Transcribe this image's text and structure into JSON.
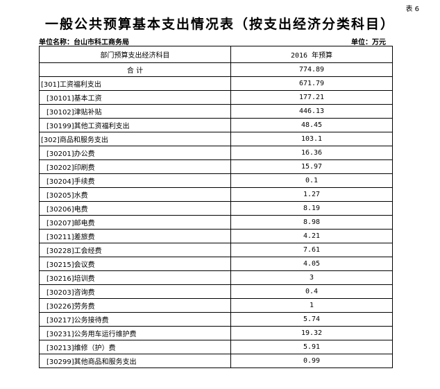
{
  "table_tag": "表 6",
  "title": "一般公共预算基本支出情况表（按支出经济分类科目）",
  "unit_name": "单位名称：台山市科工商务局",
  "unit": "单位：万元",
  "headers": [
    "部门预算支出经济科目",
    "2016 年预算"
  ],
  "total": {
    "label": "合 计",
    "value": "774.89"
  },
  "rows": [
    {
      "label": "[301]工资福利支出",
      "value": "671.79",
      "level": 1
    },
    {
      "label": "[30101]基本工资",
      "value": "177.21",
      "level": 2
    },
    {
      "label": "[30102]津贴补贴",
      "value": "446.13",
      "level": 2
    },
    {
      "label": "[30199]其他工资福利支出",
      "value": "48.45",
      "level": 2
    },
    {
      "label": "[302]商品和服务支出",
      "value": "103.1",
      "level": 1
    },
    {
      "label": "[30201]办公费",
      "value": "16.36",
      "level": 2
    },
    {
      "label": "[30202]印刷费",
      "value": "15.97",
      "level": 2
    },
    {
      "label": "[30204]手续费",
      "value": "0.1",
      "level": 2
    },
    {
      "label": "[30205]水费",
      "value": "1.27",
      "level": 2
    },
    {
      "label": "[30206]电费",
      "value": "8.19",
      "level": 2
    },
    {
      "label": "[30207]邮电费",
      "value": "8.98",
      "level": 2
    },
    {
      "label": "[30211]差旅费",
      "value": "4.21",
      "level": 2
    },
    {
      "label": "[30228]工会经费",
      "value": "7.61",
      "level": 2
    },
    {
      "label": "[30215]会议费",
      "value": "4.05",
      "level": 2
    },
    {
      "label": "[30216]培训费",
      "value": "3",
      "level": 2
    },
    {
      "label": "[30203]咨询费",
      "value": "0.4",
      "level": 2
    },
    {
      "label": "[30226]劳务费",
      "value": "1",
      "level": 2
    },
    {
      "label": "[30217]公务接待费",
      "value": "5.74",
      "level": 2
    },
    {
      "label": "[30231]公务用车运行维护费",
      "value": "19.32",
      "level": 2
    },
    {
      "label": "[30213]维修（护）费",
      "value": "5.91",
      "level": 2
    },
    {
      "label": "[30299]其他商品和服务支出",
      "value": "0.99",
      "level": 2
    }
  ]
}
